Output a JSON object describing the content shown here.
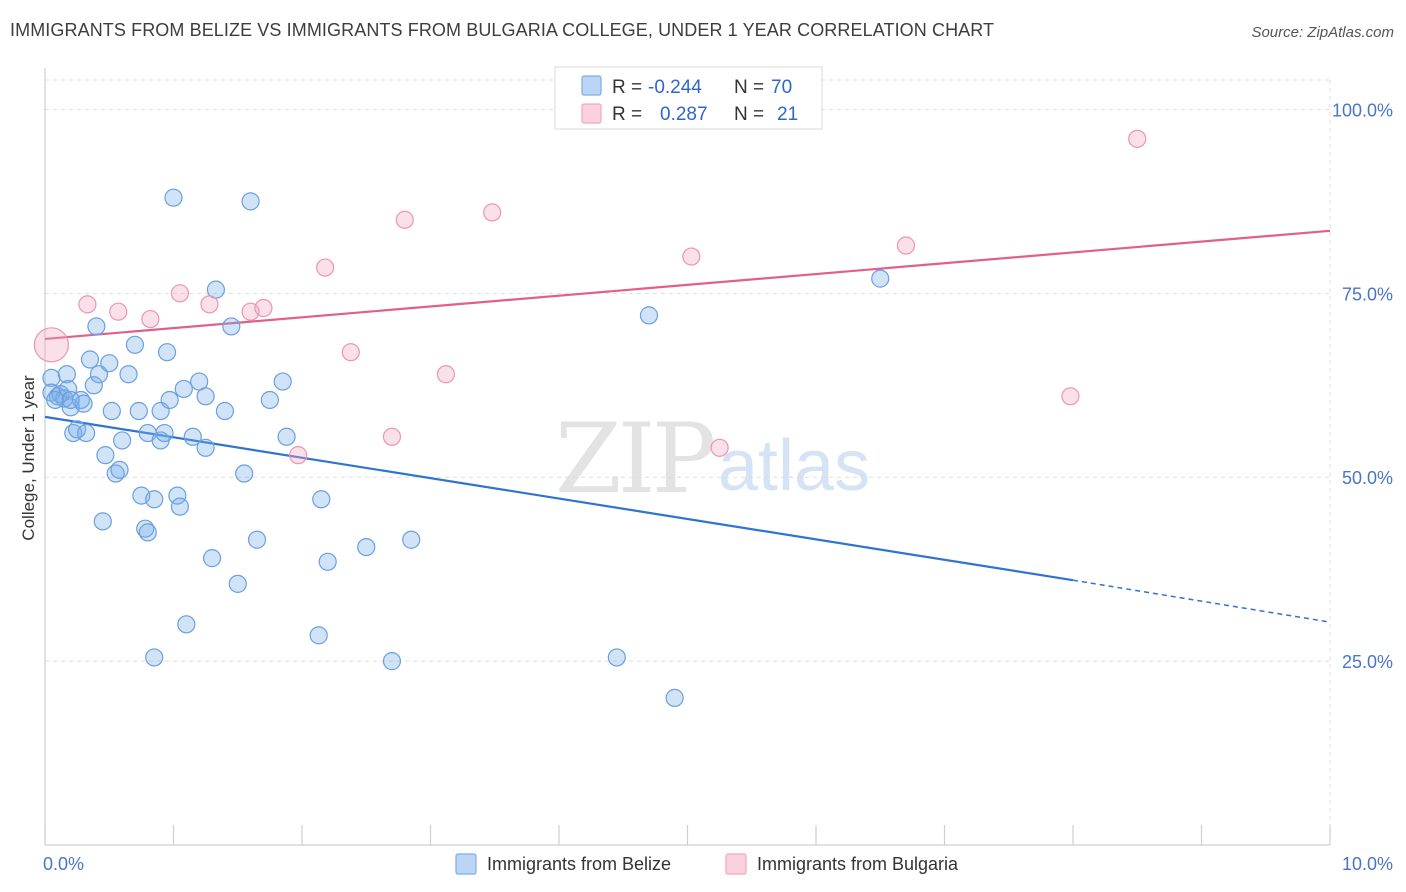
{
  "title": "IMMIGRANTS FROM BELIZE VS IMMIGRANTS FROM BULGARIA COLLEGE, UNDER 1 YEAR CORRELATION CHART",
  "source": "Source: ZipAtlas.com",
  "watermark": {
    "zip": "ZIP",
    "atlas": "atlas"
  },
  "colors": {
    "belize": "#7baee8",
    "bulgaria": "#f2a7bf",
    "belize_line": "#2f74d0",
    "bulgaria_line": "#e0608a",
    "tick_text": "#4a74c9"
  },
  "legend_top": {
    "rows": [
      {
        "r_label": "R =",
        "r_value": "-0.244",
        "n_label": "N =",
        "n_value": "70"
      },
      {
        "r_label": "R =",
        "r_value": "0.287",
        "n_label": "N =",
        "n_value": "21"
      }
    ]
  },
  "chart_data": {
    "type": "scatter",
    "title": "IMMIGRANTS FROM BELIZE VS IMMIGRANTS FROM BULGARIA COLLEGE, UNDER 1 YEAR CORRELATION CHART",
    "xlabel": "",
    "ylabel": "College, Under 1 year",
    "xlim": [
      0,
      10
    ],
    "ylim": [
      0,
      104
    ],
    "x_ticks": [
      {
        "value": 0,
        "label": "0.0%"
      },
      {
        "value": 10,
        "label": "10.0%"
      }
    ],
    "y_ticks": [
      {
        "value": 25,
        "label": "25.0%"
      },
      {
        "value": 50,
        "label": "50.0%"
      },
      {
        "value": 75,
        "label": "75.0%"
      },
      {
        "value": 100,
        "label": "100.0%"
      }
    ],
    "grid": true,
    "legend_placement": "bottom",
    "series": [
      {
        "name": "Immigrants from Belize",
        "points": [
          [
            0.05,
            63.5
          ],
          [
            0.05,
            61.5
          ],
          [
            0.1,
            61
          ],
          [
            0.12,
            61.3
          ],
          [
            0.15,
            60.7
          ],
          [
            0.17,
            64
          ],
          [
            0.18,
            62
          ],
          [
            0.2,
            59.5
          ],
          [
            0.22,
            56
          ],
          [
            0.25,
            56.5
          ],
          [
            0.28,
            60.5
          ],
          [
            0.3,
            60
          ],
          [
            0.32,
            56
          ],
          [
            0.35,
            66
          ],
          [
            0.38,
            62.5
          ],
          [
            0.4,
            70.5
          ],
          [
            0.42,
            64
          ],
          [
            0.45,
            44
          ],
          [
            0.47,
            53
          ],
          [
            0.5,
            65.5
          ],
          [
            0.52,
            59
          ],
          [
            0.55,
            50.5
          ],
          [
            0.58,
            51
          ],
          [
            0.6,
            55
          ],
          [
            0.65,
            64
          ],
          [
            0.7,
            68
          ],
          [
            0.73,
            59
          ],
          [
            0.75,
            47.5
          ],
          [
            0.78,
            43
          ],
          [
            0.8,
            42.5
          ],
          [
            0.8,
            56
          ],
          [
            0.85,
            47
          ],
          [
            0.9,
            55
          ],
          [
            0.9,
            59
          ],
          [
            0.93,
            56
          ],
          [
            0.95,
            67
          ],
          [
            0.97,
            60.5
          ],
          [
            1.0,
            88
          ],
          [
            1.03,
            47.5
          ],
          [
            1.05,
            46
          ],
          [
            1.08,
            62
          ],
          [
            1.1,
            30
          ],
          [
            1.15,
            55.5
          ],
          [
            1.2,
            63
          ],
          [
            1.25,
            61
          ],
          [
            1.25,
            54
          ],
          [
            1.3,
            39
          ],
          [
            1.33,
            75.5
          ],
          [
            1.4,
            59
          ],
          [
            1.45,
            70.5
          ],
          [
            1.5,
            35.5
          ],
          [
            1.55,
            50.5
          ],
          [
            1.6,
            87.5
          ],
          [
            1.65,
            41.5
          ],
          [
            1.75,
            60.5
          ],
          [
            1.85,
            63
          ],
          [
            1.88,
            55.5
          ],
          [
            2.15,
            47
          ],
          [
            2.2,
            38.5
          ],
          [
            2.5,
            40.5
          ],
          [
            2.7,
            25
          ],
          [
            2.85,
            41.5
          ],
          [
            4.45,
            25.5
          ],
          [
            4.7,
            72
          ],
          [
            4.9,
            20
          ],
          [
            6.5,
            77
          ],
          [
            0.85,
            25.5
          ],
          [
            2.13,
            28.5
          ],
          [
            0.08,
            60.5
          ],
          [
            0.2,
            60.5
          ]
        ]
      },
      {
        "name": "Immigrants from Bulgaria",
        "points": [
          [
            0.05,
            68
          ],
          [
            0.33,
            73.5
          ],
          [
            0.57,
            72.5
          ],
          [
            0.82,
            71.5
          ],
          [
            1.05,
            75
          ],
          [
            1.28,
            73.5
          ],
          [
            1.6,
            72.5
          ],
          [
            1.7,
            73
          ],
          [
            1.97,
            53
          ],
          [
            2.18,
            78.5
          ],
          [
            2.38,
            67
          ],
          [
            2.7,
            55.5
          ],
          [
            2.8,
            85
          ],
          [
            3.12,
            64
          ],
          [
            3.48,
            86
          ],
          [
            5.03,
            80
          ],
          [
            5.25,
            54
          ],
          [
            5.65,
            100
          ],
          [
            6.7,
            81.5
          ],
          [
            7.98,
            61
          ],
          [
            8.5,
            96
          ]
        ]
      }
    ],
    "trend_lines": [
      {
        "series": "Immigrants from Belize",
        "solid_from": [
          0,
          58.2
        ],
        "solid_to": [
          8.0,
          36.0
        ],
        "dashed_to": [
          10,
          30.3
        ]
      },
      {
        "series": "Immigrants from Bulgaria",
        "solid_from": [
          0,
          68.8
        ],
        "solid_to": [
          10,
          83.5
        ]
      }
    ]
  }
}
